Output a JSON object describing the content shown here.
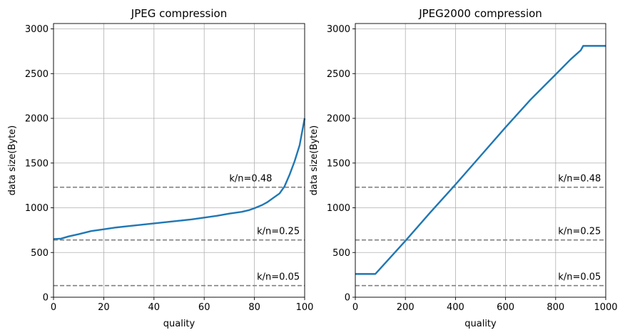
{
  "chart_data": [
    {
      "type": "line",
      "title": "JPEG compression",
      "xlabel": "quality",
      "ylabel": "data size(Byte)",
      "xlim": [
        0,
        100
      ],
      "ylim": [
        0,
        3060
      ],
      "xticks": [
        "0",
        "20",
        "40",
        "60",
        "80",
        "100"
      ],
      "yticks": [
        "0",
        "500",
        "1000",
        "1500",
        "2000",
        "2500",
        "3000"
      ],
      "xtick_values": [
        0,
        20,
        40,
        60,
        80,
        100
      ],
      "ytick_values": [
        0,
        500,
        1000,
        1500,
        2000,
        2500,
        3000
      ],
      "grid": true,
      "series": [
        {
          "color": "#1f77b4",
          "x": [
            0,
            3,
            6,
            10,
            15,
            20,
            25,
            30,
            35,
            40,
            45,
            50,
            55,
            60,
            65,
            70,
            75,
            78,
            80,
            83,
            85,
            87,
            90,
            92,
            94,
            96,
            98,
            99,
            100
          ],
          "y": [
            650,
            655,
            680,
            705,
            740,
            760,
            780,
            795,
            810,
            825,
            840,
            855,
            870,
            890,
            910,
            935,
            955,
            975,
            995,
            1030,
            1060,
            1100,
            1160,
            1240,
            1370,
            1520,
            1700,
            1850,
            2000
          ]
        }
      ],
      "hlines": [
        {
          "y": 1230,
          "label": "k/n=0.48",
          "label_x": 70
        },
        {
          "y": 640,
          "label": "k/n=0.25",
          "label_x": 81
        },
        {
          "y": 130,
          "label": "k/n=0.05",
          "label_x": 81
        }
      ]
    },
    {
      "type": "line",
      "title": "JPEG2000 compression",
      "xlabel": "quality",
      "ylabel": "data size(Byte)",
      "xlim": [
        0,
        1000
      ],
      "ylim": [
        0,
        3060
      ],
      "xticks": [
        "0",
        "200",
        "400",
        "600",
        "800",
        "1000"
      ],
      "yticks": [
        "0",
        "500",
        "1000",
        "1500",
        "2000",
        "2500",
        "3000"
      ],
      "xtick_values": [
        0,
        200,
        400,
        600,
        800,
        1000
      ],
      "ytick_values": [
        0,
        500,
        1000,
        1500,
        2000,
        2500,
        3000
      ],
      "grid": true,
      "series": [
        {
          "color": "#1f77b4",
          "x": [
            0,
            80,
            200,
            300,
            400,
            500,
            600,
            700,
            800,
            860,
            900,
            910,
            1000
          ],
          "y": [
            260,
            260,
            630,
            950,
            1260,
            1580,
            1900,
            2210,
            2490,
            2660,
            2760,
            2810,
            2810
          ]
        }
      ],
      "hlines": [
        {
          "y": 1230,
          "label": "k/n=0.48",
          "label_x": 810
        },
        {
          "y": 640,
          "label": "k/n=0.25",
          "label_x": 810
        },
        {
          "y": 130,
          "label": "k/n=0.05",
          "label_x": 810
        }
      ]
    }
  ]
}
